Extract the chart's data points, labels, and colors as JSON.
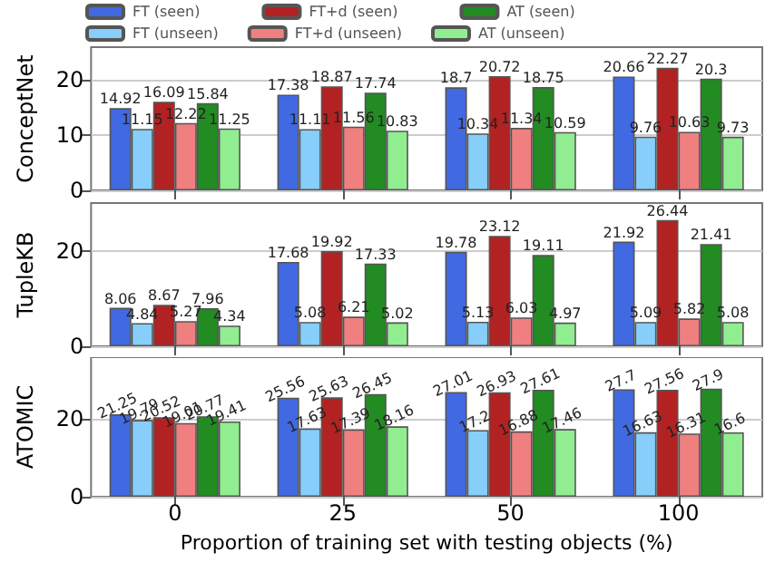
{
  "chart_data": [
    {
      "type": "bar",
      "ylabel": "ConceptNet",
      "categories": [
        "0",
        "25",
        "50",
        "100"
      ],
      "ylim": [
        0,
        26
      ],
      "yticks": [
        0,
        10,
        20
      ],
      "grid": "y",
      "legend": "top",
      "data_labels": true,
      "tick_labels": "y",
      "series": [
        {
          "name": "FT (seen)",
          "color": "#4169e1",
          "values": [
            14.92,
            17.38,
            18.7,
            20.66
          ]
        },
        {
          "name": "FT (unseen)",
          "color": "#87cefa",
          "values": [
            11.15,
            11.11,
            10.34,
            9.76
          ]
        },
        {
          "name": "FT+d (seen)",
          "color": "#b22222",
          "values": [
            16.09,
            18.87,
            20.72,
            22.27
          ]
        },
        {
          "name": "FT+d (unseen)",
          "color": "#f08080",
          "values": [
            12.22,
            11.56,
            11.34,
            10.63
          ]
        },
        {
          "name": "AT (seen)",
          "color": "#228b22",
          "values": [
            15.84,
            17.74,
            18.75,
            20.3
          ]
        },
        {
          "name": "AT (unseen)",
          "color": "#90ee90",
          "values": [
            11.25,
            10.83,
            10.59,
            9.73
          ]
        }
      ]
    },
    {
      "type": "bar",
      "ylabel": "TupleKB",
      "categories": [
        "0",
        "25",
        "50",
        "100"
      ],
      "ylim": [
        0,
        30
      ],
      "yticks": [
        0,
        20
      ],
      "grid": "y",
      "data_labels": true,
      "tick_labels": "y",
      "series": [
        {
          "color": "#4169e1",
          "values": [
            8.06,
            17.68,
            19.78,
            21.92
          ]
        },
        {
          "color": "#87cefa",
          "values": [
            4.84,
            5.08,
            5.13,
            5.09
          ]
        },
        {
          "color": "#b22222",
          "values": [
            8.67,
            19.92,
            23.12,
            26.44
          ]
        },
        {
          "color": "#f08080",
          "values": [
            5.27,
            6.21,
            6.03,
            5.82
          ]
        },
        {
          "color": "#228b22",
          "values": [
            7.96,
            17.33,
            19.11,
            21.41
          ]
        },
        {
          "color": "#90ee90",
          "values": [
            4.34,
            5.02,
            4.97,
            5.08
          ]
        }
      ]
    },
    {
      "type": "bar",
      "ylabel": "ATOMIC",
      "xlabel": "Proportion of training set with testing objects (%)",
      "categories": [
        "0",
        "25",
        "50",
        "100"
      ],
      "ylim": [
        0,
        36
      ],
      "yticks": [
        0,
        20
      ],
      "grid": "y",
      "data_labels": true,
      "series": [
        {
          "color": "#4169e1",
          "values": [
            21.25,
            25.56,
            27.01,
            27.7
          ]
        },
        {
          "color": "#87cefa",
          "values": [
            19.79,
            17.63,
            17.2,
            16.63
          ]
        },
        {
          "color": "#b22222",
          "values": [
            20.52,
            25.63,
            26.93,
            27.56
          ]
        },
        {
          "color": "#f08080",
          "values": [
            19.01,
            17.39,
            16.88,
            16.31
          ]
        },
        {
          "color": "#228b22",
          "values": [
            20.77,
            26.45,
            27.61,
            27.9
          ]
        },
        {
          "color": "#90ee90",
          "values": [
            19.41,
            18.16,
            17.46,
            16.6
          ]
        }
      ]
    }
  ]
}
